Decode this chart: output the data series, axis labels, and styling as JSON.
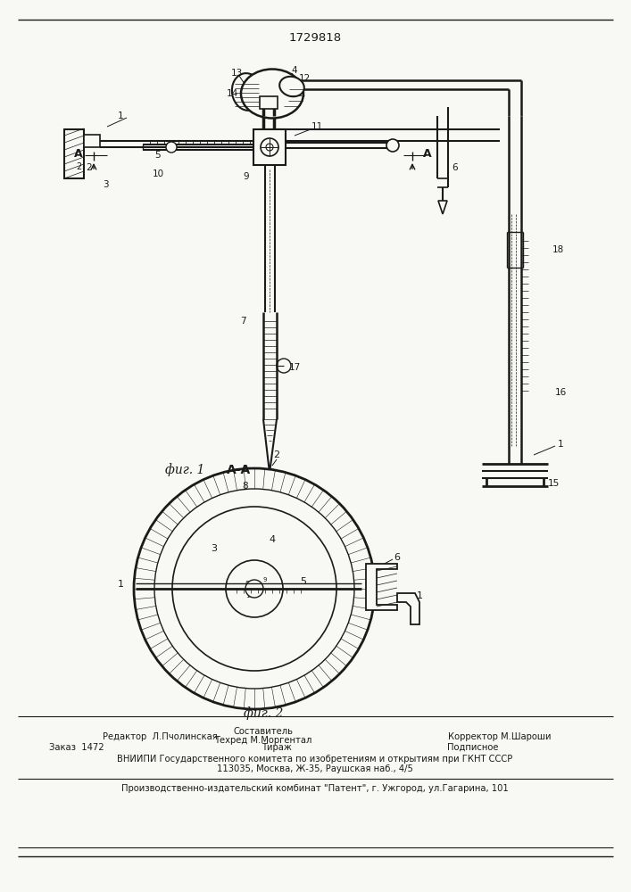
{
  "patent_number": "1729818",
  "fig1_label": "фиг. 1",
  "fig2_label": "фиг. 2",
  "section_label": "А-А",
  "footer": {
    "editor": "Редактор  Л.Пчолинская",
    "compositor_title": "Составитель",
    "techred": "Техред М.Моргентал",
    "corrector": "Корректор М.Шароши",
    "order": "Заказ  1472",
    "tirazh": "Тираж",
    "podpisnoe": "Подписное",
    "vniip_line1": "ВНИИПИ Государственного комитета по изобретениям и открытиям при ГКНТ СССР",
    "vniip_line2": "113035, Москва, Ж-35, Раушская наб., 4/5",
    "factory": "Производственно-издательский комбинат \"Патент\", г. Ужгород, ул.Гагарина, 101"
  },
  "bg_color": "#f8f8f5",
  "line_color": "#1a1a1a"
}
